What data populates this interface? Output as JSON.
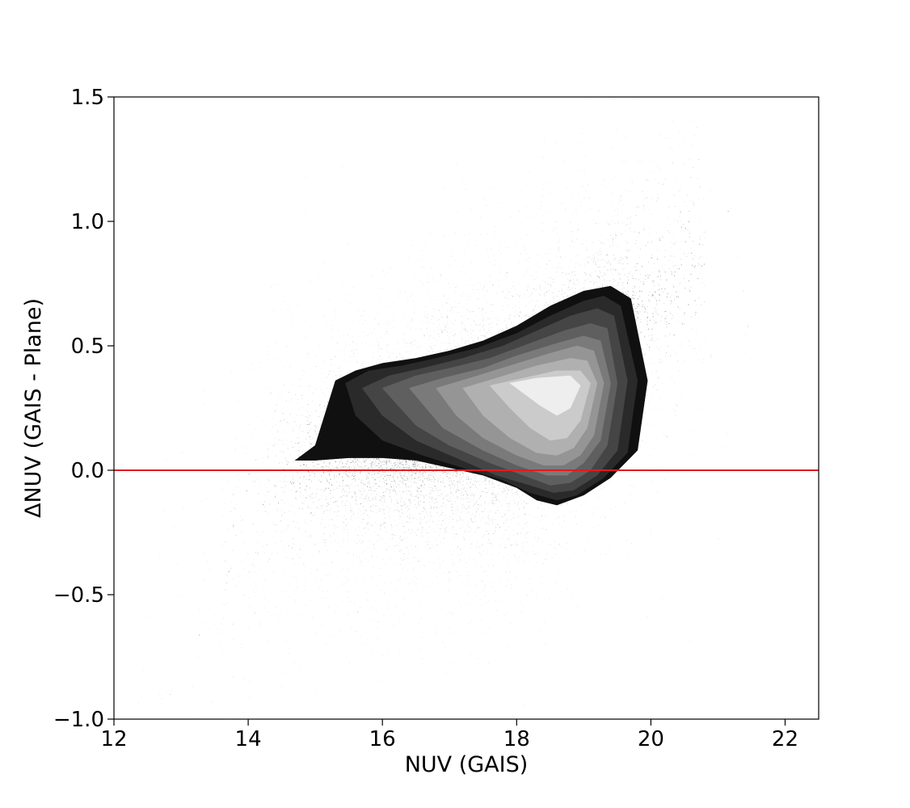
{
  "chart_data": {
    "type": "scatter",
    "title": "",
    "xlabel": "NUV (GAIS)",
    "ylabel": "ΔNUV (GAIS - Plane)",
    "xlim": [
      12,
      22.5
    ],
    "ylim": [
      -1.0,
      1.5
    ],
    "x_ticks": [
      12,
      14,
      16,
      18,
      20,
      22
    ],
    "x_tick_labels": [
      "12",
      "14",
      "16",
      "18",
      "20",
      "22"
    ],
    "y_ticks": [
      -1.0,
      -0.5,
      0.0,
      0.5,
      1.0,
      1.5
    ],
    "y_tick_labels": [
      "−1.0",
      "−0.5",
      "0.0",
      "0.5",
      "1.0",
      "1.5"
    ],
    "grid": false,
    "legend": "none",
    "reference_line": {
      "y": 0.0,
      "color": "#e31a1c"
    },
    "point_color": "#000000",
    "contour_fill_colors": [
      "#101010",
      "#2a2a2a",
      "#454545",
      "#5f5f5f",
      "#7a7a7a",
      "#959595",
      "#b0b0b0",
      "#cbcbcb",
      "#eeeeee"
    ],
    "density_contours": [
      [
        [
          14.7,
          0.04
        ],
        [
          15.0,
          0.1
        ],
        [
          15.3,
          0.36
        ],
        [
          15.6,
          0.4
        ],
        [
          16.0,
          0.43
        ],
        [
          16.5,
          0.45
        ],
        [
          17.0,
          0.48
        ],
        [
          17.5,
          0.52
        ],
        [
          18.0,
          0.58
        ],
        [
          18.5,
          0.66
        ],
        [
          19.0,
          0.72
        ],
        [
          19.4,
          0.74
        ],
        [
          19.7,
          0.69
        ],
        [
          19.95,
          0.36
        ],
        [
          19.8,
          0.08
        ],
        [
          19.4,
          -0.03
        ],
        [
          19.0,
          -0.1
        ],
        [
          18.6,
          -0.14
        ],
        [
          18.3,
          -0.12
        ],
        [
          18.0,
          -0.07
        ],
        [
          17.5,
          -0.02
        ],
        [
          17.0,
          0.01
        ],
        [
          16.5,
          0.04
        ],
        [
          16.0,
          0.05
        ],
        [
          15.5,
          0.05
        ],
        [
          15.0,
          0.04
        ]
      ],
      [
        [
          15.45,
          0.35
        ],
        [
          15.8,
          0.4
        ],
        [
          16.3,
          0.42
        ],
        [
          16.8,
          0.45
        ],
        [
          17.4,
          0.49
        ],
        [
          18.0,
          0.55
        ],
        [
          18.5,
          0.62
        ],
        [
          19.0,
          0.68
        ],
        [
          19.3,
          0.7
        ],
        [
          19.55,
          0.66
        ],
        [
          19.8,
          0.36
        ],
        [
          19.65,
          0.07
        ],
        [
          19.3,
          -0.03
        ],
        [
          18.9,
          -0.1
        ],
        [
          18.6,
          -0.12
        ],
        [
          18.2,
          -0.09
        ],
        [
          17.8,
          -0.04
        ],
        [
          17.2,
          0.01
        ],
        [
          16.6,
          0.06
        ],
        [
          16.0,
          0.12
        ],
        [
          15.6,
          0.22
        ]
      ],
      [
        [
          15.7,
          0.33
        ],
        [
          16.1,
          0.38
        ],
        [
          16.6,
          0.41
        ],
        [
          17.2,
          0.45
        ],
        [
          17.8,
          0.5
        ],
        [
          18.3,
          0.56
        ],
        [
          18.8,
          0.62
        ],
        [
          19.2,
          0.65
        ],
        [
          19.45,
          0.62
        ],
        [
          19.65,
          0.36
        ],
        [
          19.5,
          0.08
        ],
        [
          19.2,
          -0.02
        ],
        [
          18.85,
          -0.08
        ],
        [
          18.55,
          -0.09
        ],
        [
          18.2,
          -0.06
        ],
        [
          17.7,
          -0.02
        ],
        [
          17.1,
          0.05
        ],
        [
          16.5,
          0.12
        ],
        [
          16.0,
          0.22
        ]
      ],
      [
        [
          16.0,
          0.33
        ],
        [
          16.5,
          0.38
        ],
        [
          17.0,
          0.41
        ],
        [
          17.6,
          0.45
        ],
        [
          18.2,
          0.51
        ],
        [
          18.7,
          0.56
        ],
        [
          19.1,
          0.59
        ],
        [
          19.35,
          0.57
        ],
        [
          19.5,
          0.35
        ],
        [
          19.35,
          0.1
        ],
        [
          19.1,
          0.0
        ],
        [
          18.8,
          -0.05
        ],
        [
          18.5,
          -0.06
        ],
        [
          18.1,
          -0.02
        ],
        [
          17.6,
          0.03
        ],
        [
          17.0,
          0.1
        ],
        [
          16.5,
          0.18
        ]
      ],
      [
        [
          16.4,
          0.33
        ],
        [
          16.9,
          0.37
        ],
        [
          17.5,
          0.41
        ],
        [
          18.0,
          0.46
        ],
        [
          18.6,
          0.51
        ],
        [
          19.0,
          0.54
        ],
        [
          19.25,
          0.52
        ],
        [
          19.4,
          0.35
        ],
        [
          19.25,
          0.12
        ],
        [
          19.0,
          0.03
        ],
        [
          18.75,
          -0.02
        ],
        [
          18.45,
          -0.02
        ],
        [
          18.0,
          0.02
        ],
        [
          17.5,
          0.08
        ],
        [
          16.9,
          0.17
        ]
      ],
      [
        [
          16.8,
          0.33
        ],
        [
          17.3,
          0.37
        ],
        [
          17.9,
          0.42
        ],
        [
          18.5,
          0.47
        ],
        [
          18.9,
          0.5
        ],
        [
          19.15,
          0.48
        ],
        [
          19.3,
          0.35
        ],
        [
          19.15,
          0.14
        ],
        [
          18.95,
          0.06
        ],
        [
          18.7,
          0.02
        ],
        [
          18.4,
          0.02
        ],
        [
          18.0,
          0.06
        ],
        [
          17.5,
          0.13
        ],
        [
          17.1,
          0.22
        ]
      ],
      [
        [
          17.2,
          0.33
        ],
        [
          17.7,
          0.37
        ],
        [
          18.3,
          0.42
        ],
        [
          18.8,
          0.45
        ],
        [
          19.05,
          0.44
        ],
        [
          19.2,
          0.35
        ],
        [
          19.05,
          0.17
        ],
        [
          18.85,
          0.09
        ],
        [
          18.6,
          0.06
        ],
        [
          18.3,
          0.07
        ],
        [
          17.9,
          0.13
        ],
        [
          17.5,
          0.22
        ]
      ],
      [
        [
          17.6,
          0.34
        ],
        [
          18.1,
          0.37
        ],
        [
          18.6,
          0.4
        ],
        [
          18.95,
          0.4
        ],
        [
          19.1,
          0.35
        ],
        [
          18.95,
          0.2
        ],
        [
          18.75,
          0.13
        ],
        [
          18.5,
          0.12
        ],
        [
          18.2,
          0.17
        ],
        [
          17.9,
          0.25
        ]
      ],
      [
        [
          17.9,
          0.35
        ],
        [
          18.3,
          0.37
        ],
        [
          18.8,
          0.38
        ],
        [
          18.95,
          0.34
        ],
        [
          18.8,
          0.25
        ],
        [
          18.6,
          0.22
        ],
        [
          18.35,
          0.26
        ],
        [
          18.1,
          0.31
        ]
      ]
    ]
  }
}
